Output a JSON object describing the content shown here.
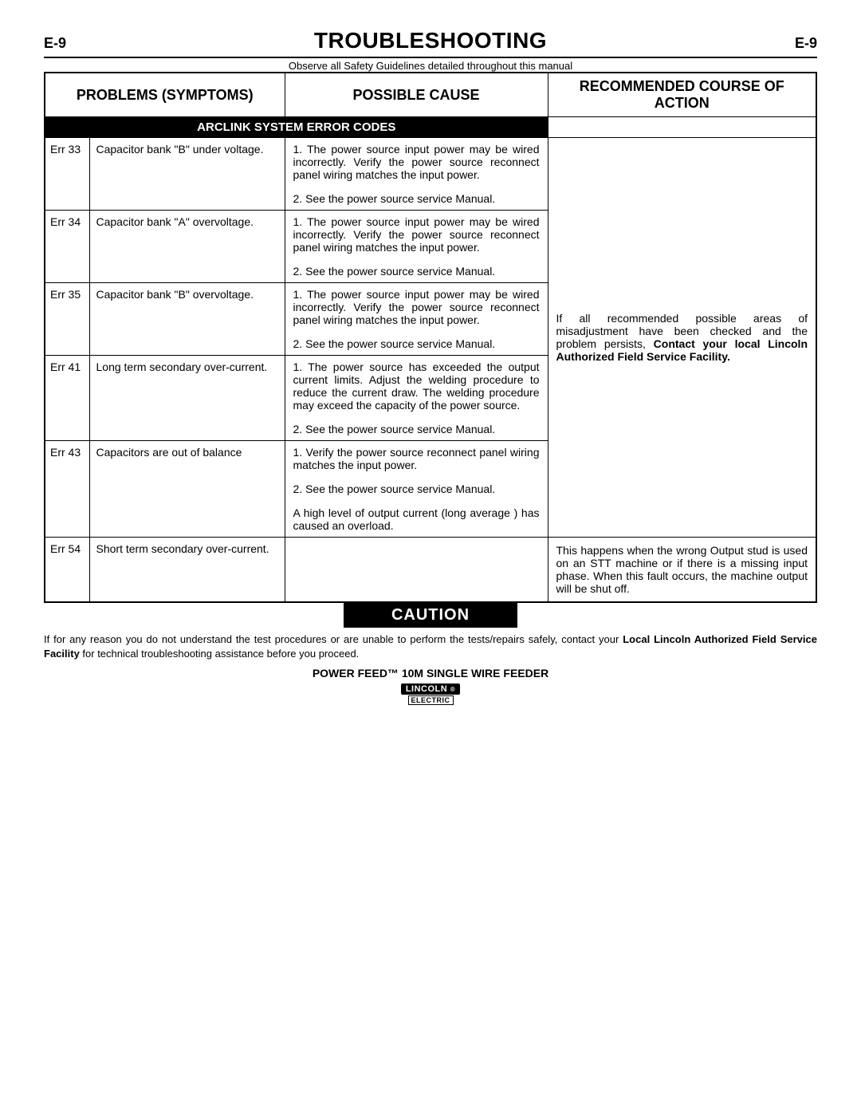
{
  "page": {
    "id_left": "E-9",
    "title": "TROUBLESHOOTING",
    "id_right": "E-9",
    "observe": "Observe all Safety Guidelines detailed throughout this manual"
  },
  "table": {
    "headers": {
      "problems": "PROBLEMS (SYMPTOMS)",
      "possible": "POSSIBLE CAUSE",
      "recommended": "RECOMMENDED COURSE OF ACTION"
    },
    "section_bar": "ARCLINK SYSTEM ERROR CODES",
    "rows": [
      {
        "code": "Err 33",
        "symptom": "Capacitor bank \"B\" under voltage.",
        "cause1": "1. The power source input power may be wired incorrectly. Verify the power source reconnect panel wiring matches the input power.",
        "cause2": "2. See the power source service Manual."
      },
      {
        "code": "Err 34",
        "symptom": "Capacitor bank \"A\" overvoltage.",
        "cause1": "1. The power source input power may be wired incorrectly. Verify the power source reconnect panel wiring matches the input power.",
        "cause2": "2. See the power source service Manual."
      },
      {
        "code": "Err 35",
        "symptom": "Capacitor bank \"B\" overvoltage.",
        "cause1": "1. The power source input power may be wired incorrectly. Verify the power source reconnect panel wiring matches the input power.",
        "cause2": "2. See the power source service Manual."
      },
      {
        "code": "Err 41",
        "symptom": "Long term secondary over-current.",
        "cause1": "1. The power source has exceeded the output current limits. Adjust the welding procedure to reduce the current draw. The welding procedure may exceed the capacity of the power source.",
        "cause2": "2. See the power source service Manual."
      },
      {
        "code": "Err 43",
        "symptom": "Capacitors are out of balance",
        "cause1": "1. Verify the power source reconnect panel wiring matches the input power.",
        "cause2": "2. See the power source service Manual.",
        "cause3": "A high level of output current (long average ) has caused an overload."
      },
      {
        "code": "Err 54",
        "symptom": "Short term secondary over-current."
      }
    ],
    "recommended_main_pre": "If all recommended possible areas of misadjustment have been checked and the problem persists, ",
    "recommended_main_bold": "Contact your local Lincoln Authorized Field Service Facility.",
    "recommended_err54": "This happens when the wrong Output stud is used on an STT machine or if there is a missing input phase.  When this fault occurs, the machine output will be shut off."
  },
  "caution": {
    "label": "CAUTION",
    "text_pre": "If for any reason you do not understand the test procedures or are unable to perform the tests/repairs safely, contact your ",
    "text_bold": "Local  Lincoln Authorized Field Service Facility",
    "text_post": " for technical troubleshooting assistance before you proceed."
  },
  "footer": {
    "title": "POWER FEED™ 10M SINGLE WIRE FEEDER",
    "logo": "LINCOLN",
    "logo_sub": "ELECTRIC"
  },
  "styles": {
    "page_bg": "#ffffff",
    "text_color": "#000000",
    "bar_bg": "#000000",
    "bar_fg": "#ffffff"
  }
}
